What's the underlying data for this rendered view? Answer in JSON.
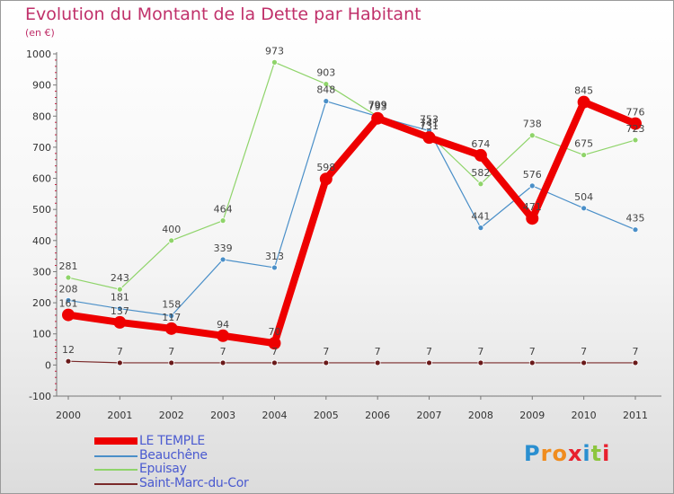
{
  "title": "Evolution du Montant de la Dette par Habitant",
  "subtitle": "(en €)",
  "logo": {
    "text": "Proxiti",
    "letter_colors": [
      "#2a8fd0",
      "#f08c1e",
      "#f08c1e",
      "#e8212e",
      "#2a8fd0",
      "#8dc63f",
      "#e8212e"
    ]
  },
  "chart_data": {
    "type": "line",
    "categories": [
      "2000",
      "2001",
      "2002",
      "2003",
      "2004",
      "2005",
      "2006",
      "2007",
      "2008",
      "2009",
      "2010",
      "2011"
    ],
    "ylim": [
      -100,
      1000
    ],
    "yticks": [
      -100,
      0,
      100,
      200,
      300,
      400,
      500,
      600,
      700,
      800,
      900,
      1000
    ],
    "grid": false,
    "legend_position": "bottom-left",
    "series": [
      {
        "name": "LE TEMPLE",
        "color": "#ee0000",
        "values": [
          161,
          137,
          117,
          94,
          70,
          598,
          793,
          731,
          674,
          471,
          845,
          776
        ],
        "labels": [
          "161",
          "137",
          "117",
          "94",
          "70",
          "598",
          "793",
          "731",
          "674",
          "471",
          "845",
          "776"
        ]
      },
      {
        "name": "Beauchêne",
        "color": "#4a8fc8",
        "values": [
          208,
          181,
          158,
          339,
          313,
          848,
          799,
          753,
          441,
          576,
          504,
          435
        ],
        "labels": [
          "208",
          "181",
          "158",
          "339",
          "313",
          "848",
          "799",
          "753",
          "441",
          "576",
          "504",
          "435"
        ]
      },
      {
        "name": "Epuisay",
        "color": "#8fd46a",
        "values": [
          281,
          243,
          400,
          464,
          973,
          903,
          799,
          741,
          582,
          738,
          675,
          723
        ],
        "labels": [
          "281",
          "243",
          "400",
          "464",
          "973",
          "903",
          "799",
          "741",
          "582",
          "738",
          "675",
          "723"
        ]
      },
      {
        "name": "Saint-Marc-du-Cor",
        "color": "#7a2a2a",
        "values": [
          12,
          7,
          7,
          7,
          7,
          7,
          7,
          7,
          7,
          7,
          7,
          7
        ],
        "labels": [
          "12",
          "7",
          "7",
          "7",
          "7",
          "7",
          "7",
          "7",
          "7",
          "7",
          "7",
          "7"
        ]
      }
    ]
  }
}
